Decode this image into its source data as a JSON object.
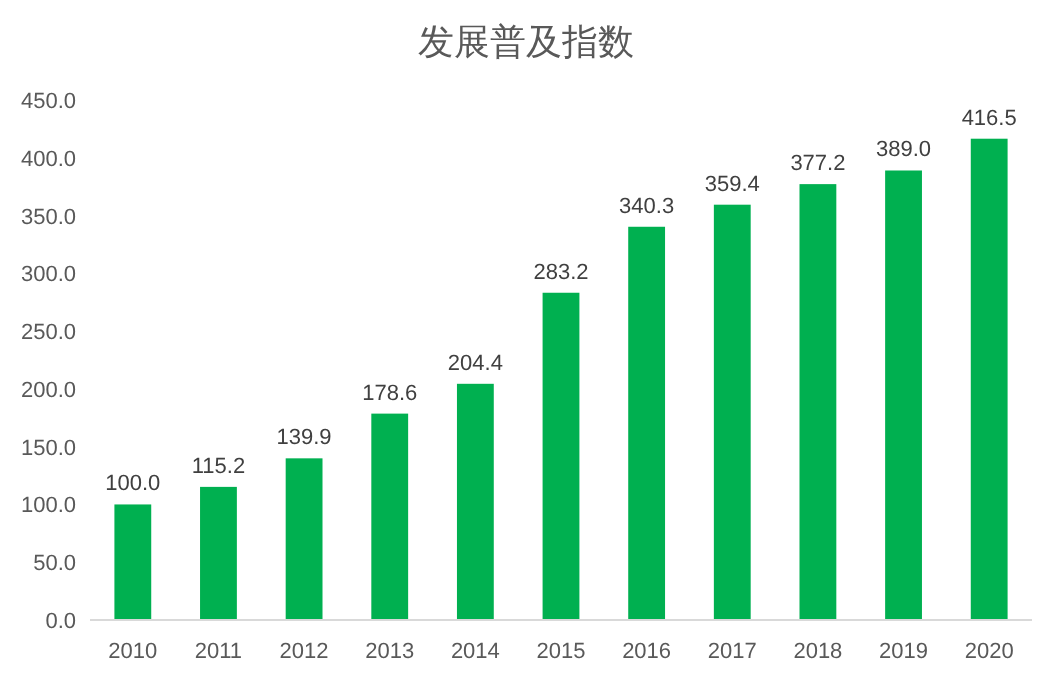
{
  "chart_data": {
    "type": "bar",
    "title": "发展普及指数",
    "categories": [
      "2010",
      "2011",
      "2012",
      "2013",
      "2014",
      "2015",
      "2016",
      "2017",
      "2018",
      "2019",
      "2020"
    ],
    "values": [
      100.0,
      115.2,
      139.9,
      178.6,
      204.4,
      283.2,
      340.3,
      359.4,
      377.2,
      389.0,
      416.5
    ],
    "value_labels": [
      "100.0",
      "115.2",
      "139.9",
      "178.6",
      "204.4",
      "283.2",
      "340.3",
      "359.4",
      "377.2",
      "389.0",
      "416.5"
    ],
    "color": "#00b050",
    "ylim": [
      0,
      450
    ],
    "yticks": [
      {
        "value": 0,
        "label": "0.0"
      },
      {
        "value": 50,
        "label": "50.0"
      },
      {
        "value": 100,
        "label": "100.0"
      },
      {
        "value": 150,
        "label": "150.0"
      },
      {
        "value": 200,
        "label": "200.0"
      },
      {
        "value": 250,
        "label": "250.0"
      },
      {
        "value": 300,
        "label": "300.0"
      },
      {
        "value": 350,
        "label": "350.0"
      },
      {
        "value": 400,
        "label": "400.0"
      },
      {
        "value": 450,
        "label": "450.0"
      }
    ]
  }
}
